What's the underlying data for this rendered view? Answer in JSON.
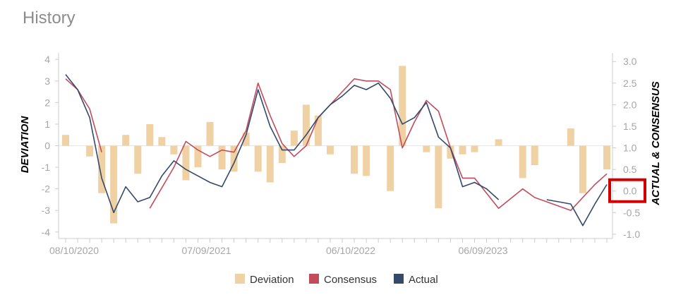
{
  "header": {
    "title": "History"
  },
  "colors": {
    "deviation": "#f0d1a4",
    "consensus": "#c34c5c",
    "actual": "#35496b",
    "grid": "#e6e6e6",
    "axis": "#cccccc",
    "highlight": "#d40000"
  },
  "chart_data": {
    "type": "bar+line",
    "xlabels": [
      "08/10/2020",
      "07/09/2021",
      "06/10/2022",
      "06/09/2023"
    ],
    "ylabel_left": "DEVIATION",
    "ylabel_right": "ACTUAL & CONSENSUS",
    "yticks_left": [
      "4",
      "3",
      "2",
      "1",
      "0",
      "-1",
      "-2",
      "-3",
      "-4"
    ],
    "yticks_right": [
      "3.0",
      "2.5",
      "2.0",
      "1.5",
      "1.0",
      "0.5",
      "0.0",
      "-0.5",
      "-1.0"
    ],
    "ylim_left": [
      -4.3,
      4.3
    ],
    "ylim_right": [
      -1.1,
      3.2
    ],
    "grid": "horizontal-zero-line",
    "legend": {
      "placement": "bottom-center",
      "entries": [
        "Deviation",
        "Consensus",
        "Actual"
      ]
    },
    "highlighted_tick": "0.0",
    "deviation": {
      "name": "Deviation",
      "points": [
        [
          0,
          0.5
        ],
        [
          2,
          -0.5
        ],
        [
          3,
          -2.2
        ],
        [
          4,
          -3.6
        ],
        [
          5,
          0.5
        ],
        [
          6,
          -1.3
        ],
        [
          7,
          1
        ],
        [
          8,
          0.4
        ],
        [
          9,
          -0.4
        ],
        [
          10,
          -1.6
        ],
        [
          11,
          -1
        ],
        [
          12,
          1.1
        ],
        [
          13,
          -1.1
        ],
        [
          14,
          -1.2
        ],
        [
          15,
          0.6
        ],
        [
          16,
          -1.2
        ],
        [
          17,
          -1.7
        ],
        [
          18,
          -0.8
        ],
        [
          19,
          0.7
        ],
        [
          20,
          1.9
        ],
        [
          21,
          1.4
        ],
        [
          22,
          -0.4
        ],
        [
          24,
          -1.3
        ],
        [
          25,
          -1.4
        ],
        [
          27,
          -2.1
        ],
        [
          28,
          3.7
        ],
        [
          30,
          -0.3
        ],
        [
          31,
          -2.9
        ],
        [
          32,
          -0.6
        ],
        [
          33,
          -0.4
        ],
        [
          34,
          -0.3
        ],
        [
          36,
          0.3
        ],
        [
          38,
          -1.5
        ],
        [
          39,
          -0.9
        ],
        [
          42,
          0.8
        ],
        [
          43,
          -2.2
        ],
        [
          45,
          -1.1
        ]
      ]
    },
    "consensus": {
      "name": "Consensus",
      "segments": [
        [
          [
            0,
            2.6
          ],
          [
            1,
            2.35
          ],
          [
            2,
            1.9
          ],
          [
            3,
            0.9
          ]
        ],
        [
          [
            7,
            -0.4
          ],
          [
            9,
            0.55
          ],
          [
            10,
            1.15
          ],
          [
            11,
            0.95
          ],
          [
            12,
            0.8
          ],
          [
            13,
            0.95
          ],
          [
            14,
            0.9
          ],
          [
            15,
            1.4
          ],
          [
            16,
            2.5
          ],
          [
            17,
            1.75
          ],
          [
            18,
            1.1
          ],
          [
            19,
            0.8
          ],
          [
            20,
            1.05
          ],
          [
            21,
            1.7
          ],
          [
            22,
            2.0
          ],
          [
            23,
            2.3
          ],
          [
            24,
            2.6
          ],
          [
            25,
            2.55
          ],
          [
            26,
            2.55
          ],
          [
            27,
            2.35
          ],
          [
            28,
            1.0
          ],
          [
            29,
            1.6
          ],
          [
            30,
            2.1
          ],
          [
            31,
            1.85
          ],
          [
            32,
            1.0
          ],
          [
            33,
            0.3
          ],
          [
            34,
            0.3
          ],
          [
            36,
            -0.4
          ],
          [
            38,
            0.05
          ],
          [
            39,
            -0.15
          ],
          [
            41,
            -0.35
          ],
          [
            42,
            -0.45
          ],
          [
            44,
            0.15
          ],
          [
            45,
            0.4
          ]
        ]
      ]
    },
    "actual": {
      "name": "Actual",
      "segments": [
        [
          [
            0,
            2.7
          ],
          [
            1,
            2.35
          ],
          [
            2,
            1.7
          ],
          [
            3,
            0.3
          ],
          [
            4,
            -0.5
          ],
          [
            5,
            0.1
          ],
          [
            6,
            -0.25
          ],
          [
            7,
            -0.15
          ],
          [
            8,
            0.35
          ],
          [
            9,
            0.7
          ],
          [
            10,
            0.5
          ],
          [
            11,
            0.35
          ],
          [
            12,
            0.2
          ],
          [
            13,
            0.1
          ],
          [
            14,
            0.65
          ],
          [
            15,
            1.3
          ],
          [
            16,
            2.35
          ],
          [
            17,
            1.5
          ],
          [
            18,
            0.95
          ],
          [
            19,
            0.95
          ],
          [
            20,
            1.3
          ],
          [
            21,
            1.7
          ],
          [
            22,
            2.0
          ],
          [
            23,
            2.2
          ],
          [
            24,
            2.45
          ],
          [
            25,
            2.35
          ],
          [
            26,
            2.5
          ],
          [
            27,
            2.15
          ],
          [
            28,
            1.55
          ],
          [
            29,
            1.7
          ],
          [
            30,
            2.05
          ],
          [
            31,
            1.25
          ],
          [
            32,
            1.0
          ],
          [
            33,
            0.1
          ],
          [
            34,
            0.2
          ],
          [
            35,
            0.05
          ],
          [
            36,
            -0.2
          ]
        ],
        [
          [
            40,
            -0.2
          ],
          [
            41,
            -0.25
          ],
          [
            42,
            -0.3
          ],
          [
            43,
            -0.8
          ],
          [
            44,
            -0.3
          ],
          [
            45,
            0.15
          ]
        ]
      ]
    }
  }
}
